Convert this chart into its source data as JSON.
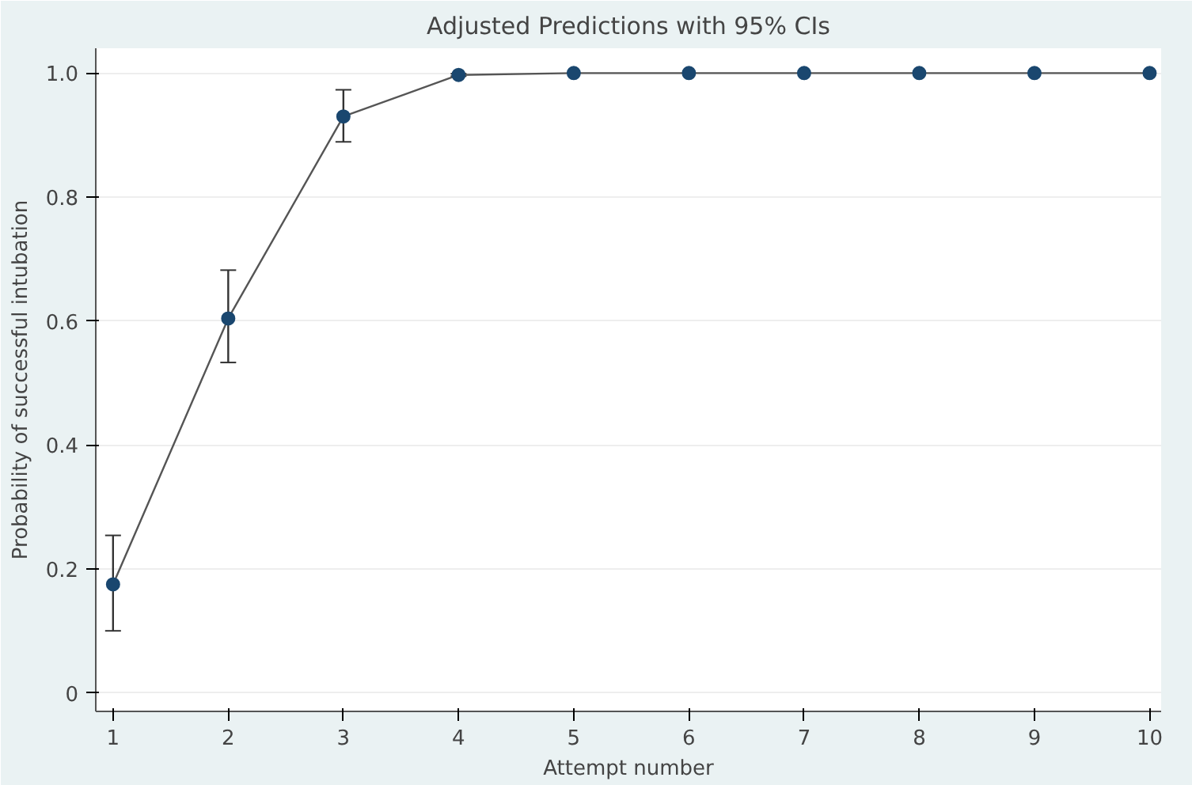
{
  "chart_data": {
    "type": "line",
    "title": "Adjusted Predictions with 95% CIs",
    "xlabel": "Attempt number",
    "ylabel": "Probability of successful intubation",
    "x": [
      1,
      2,
      3,
      4,
      5,
      6,
      7,
      8,
      9,
      10
    ],
    "series": [
      {
        "color": "#1a476f",
        "values": [
          0.175,
          0.604,
          0.93,
          0.997,
          1.0,
          1.0,
          1.0,
          1.0,
          1.0,
          1.0
        ],
        "errors": [
          [
            0.1,
            0.254
          ],
          [
            0.533,
            0.682
          ],
          [
            0.889,
            0.973
          ],
          [
            0.995,
            0.999
          ],
          null,
          null,
          null,
          null,
          null,
          null
        ]
      }
    ],
    "xlim": [
      0.85,
      10.1
    ],
    "xticks": [
      1,
      2,
      3,
      4,
      5,
      6,
      7,
      8,
      9,
      10
    ],
    "ylim": [
      -0.03,
      1.04
    ],
    "yticks": [
      0,
      0.2,
      0.4,
      0.6,
      0.8,
      {
        "value": 1,
        "label": "1.0"
      }
    ],
    "grid": "y",
    "marker": "circle",
    "line_style": "solid"
  }
}
